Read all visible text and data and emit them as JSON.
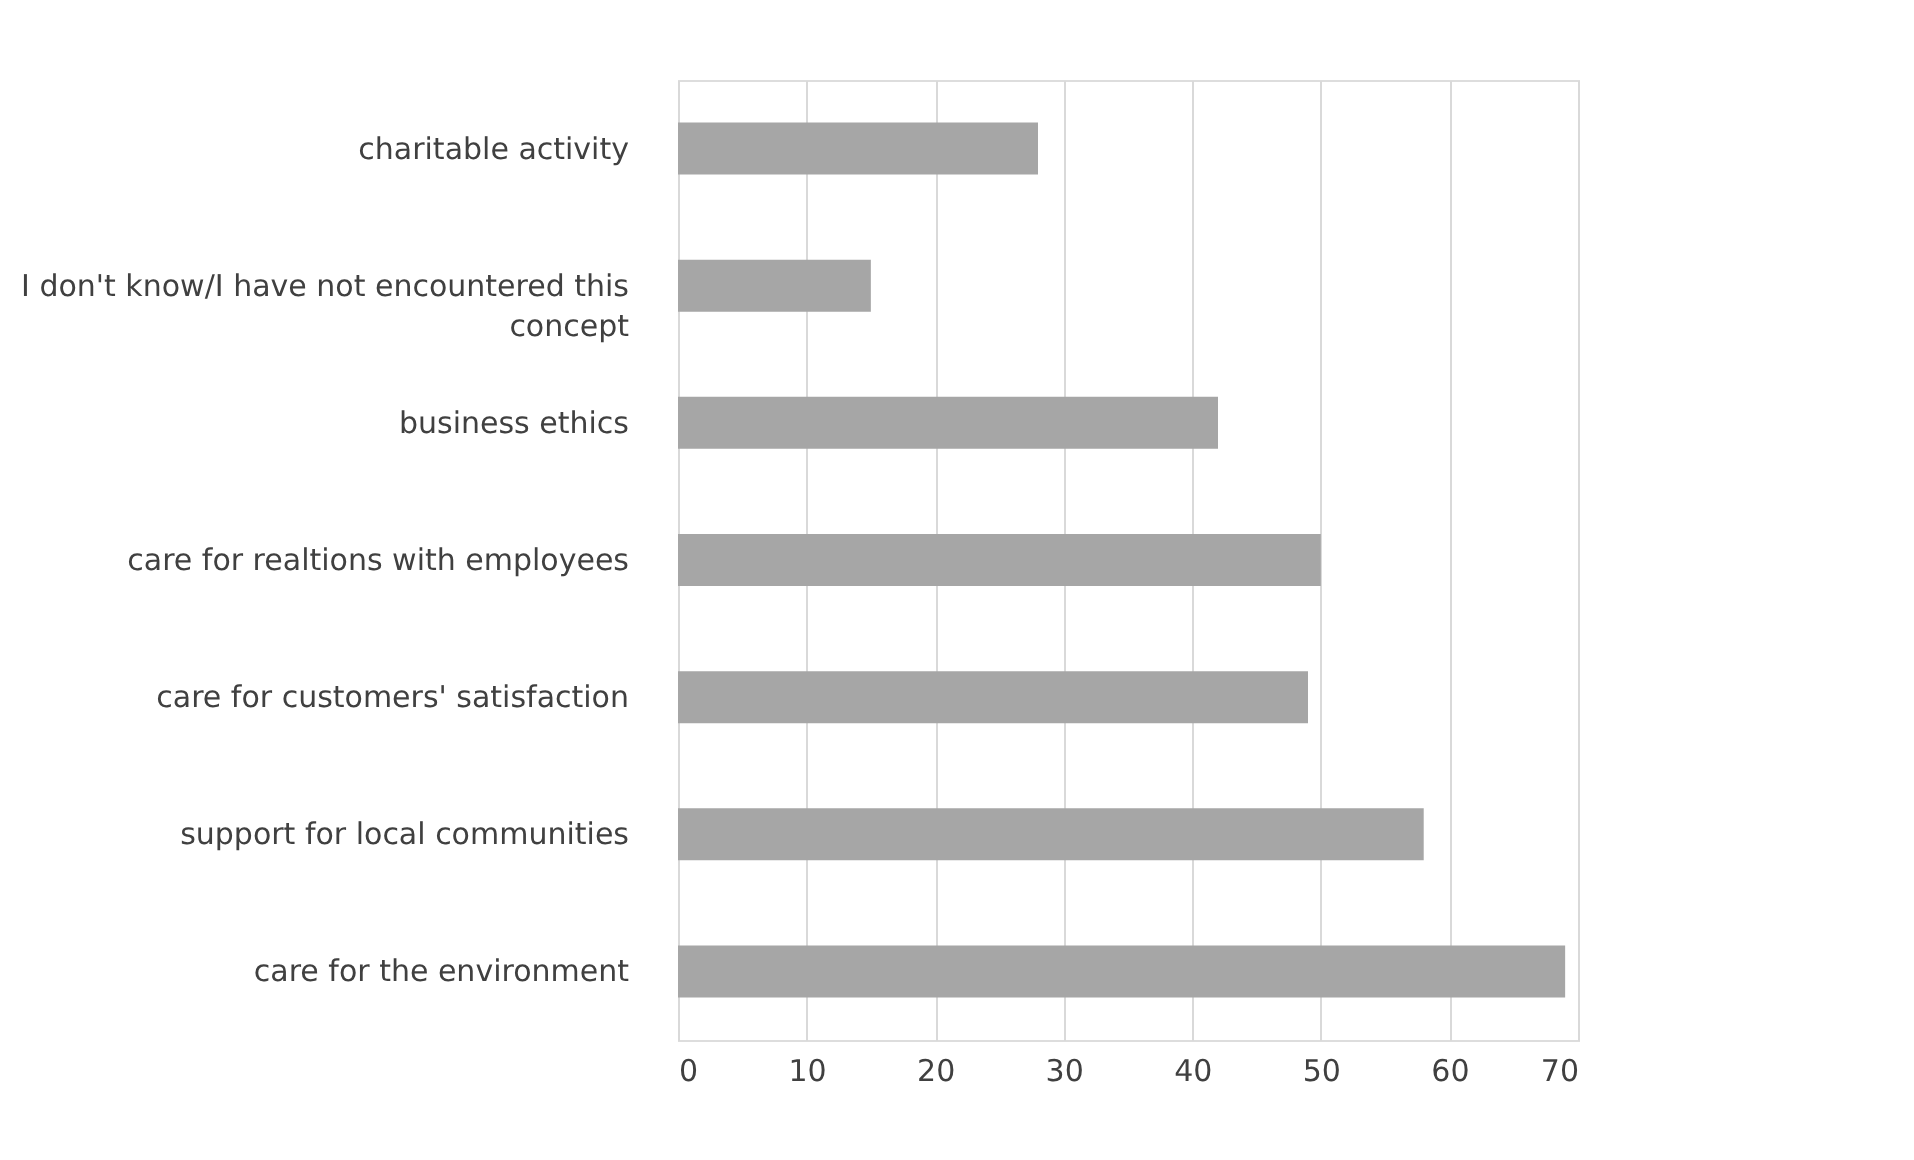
{
  "chart_data": {
    "type": "bar",
    "orientation": "horizontal",
    "categories": [
      "charitable activity",
      "I don't know/I have not encountered this concept",
      "business ethics",
      "care for realtions with employees",
      "care for customers' satisfaction",
      "support for local communities",
      "care for the environment"
    ],
    "values": [
      28,
      15,
      42,
      50,
      49,
      58,
      69
    ],
    "color": "#a6a6a6",
    "xlim": [
      0,
      70
    ],
    "xticks": [
      0,
      10,
      20,
      30,
      40,
      50,
      60,
      70
    ],
    "grid": "x"
  }
}
